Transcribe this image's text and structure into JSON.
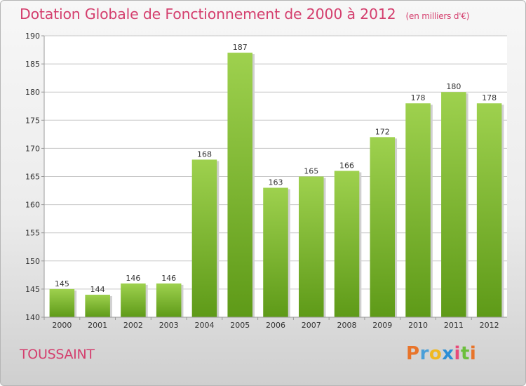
{
  "header": {
    "title": "Dotation Globale de Fonctionnement de 2000 à 2012",
    "subtitle": "(en milliers d'€)"
  },
  "footer": {
    "city": "TOUSSAINT",
    "logo_letters": [
      "P",
      "r",
      "o",
      "x",
      "i",
      "t",
      "i"
    ],
    "logo_colors": [
      "#e8742a",
      "#4a9fd8",
      "#f0b820",
      "#2c8fd6",
      "#e84a7a",
      "#6cbf3c",
      "#e8742a"
    ]
  },
  "chart_data": {
    "type": "bar",
    "title": "Dotation Globale de Fonctionnement de 2000 à 2012",
    "subtitle": "(en milliers d'€)",
    "xlabel": "",
    "ylabel": "",
    "categories": [
      "2000",
      "2001",
      "2002",
      "2003",
      "2004",
      "2005",
      "2006",
      "2007",
      "2008",
      "2009",
      "2010",
      "2011",
      "2012"
    ],
    "values": [
      145,
      144,
      146,
      146,
      168,
      187,
      163,
      165,
      166,
      172,
      178,
      180,
      178
    ],
    "ylim": [
      140,
      190
    ],
    "yticks": [
      140,
      145,
      150,
      155,
      160,
      165,
      170,
      175,
      180,
      185,
      190
    ],
    "grid": true,
    "bar_color_top": "#9ed14e",
    "bar_color_bottom": "#5e9a18",
    "grid_color": "#c8c8c8"
  }
}
